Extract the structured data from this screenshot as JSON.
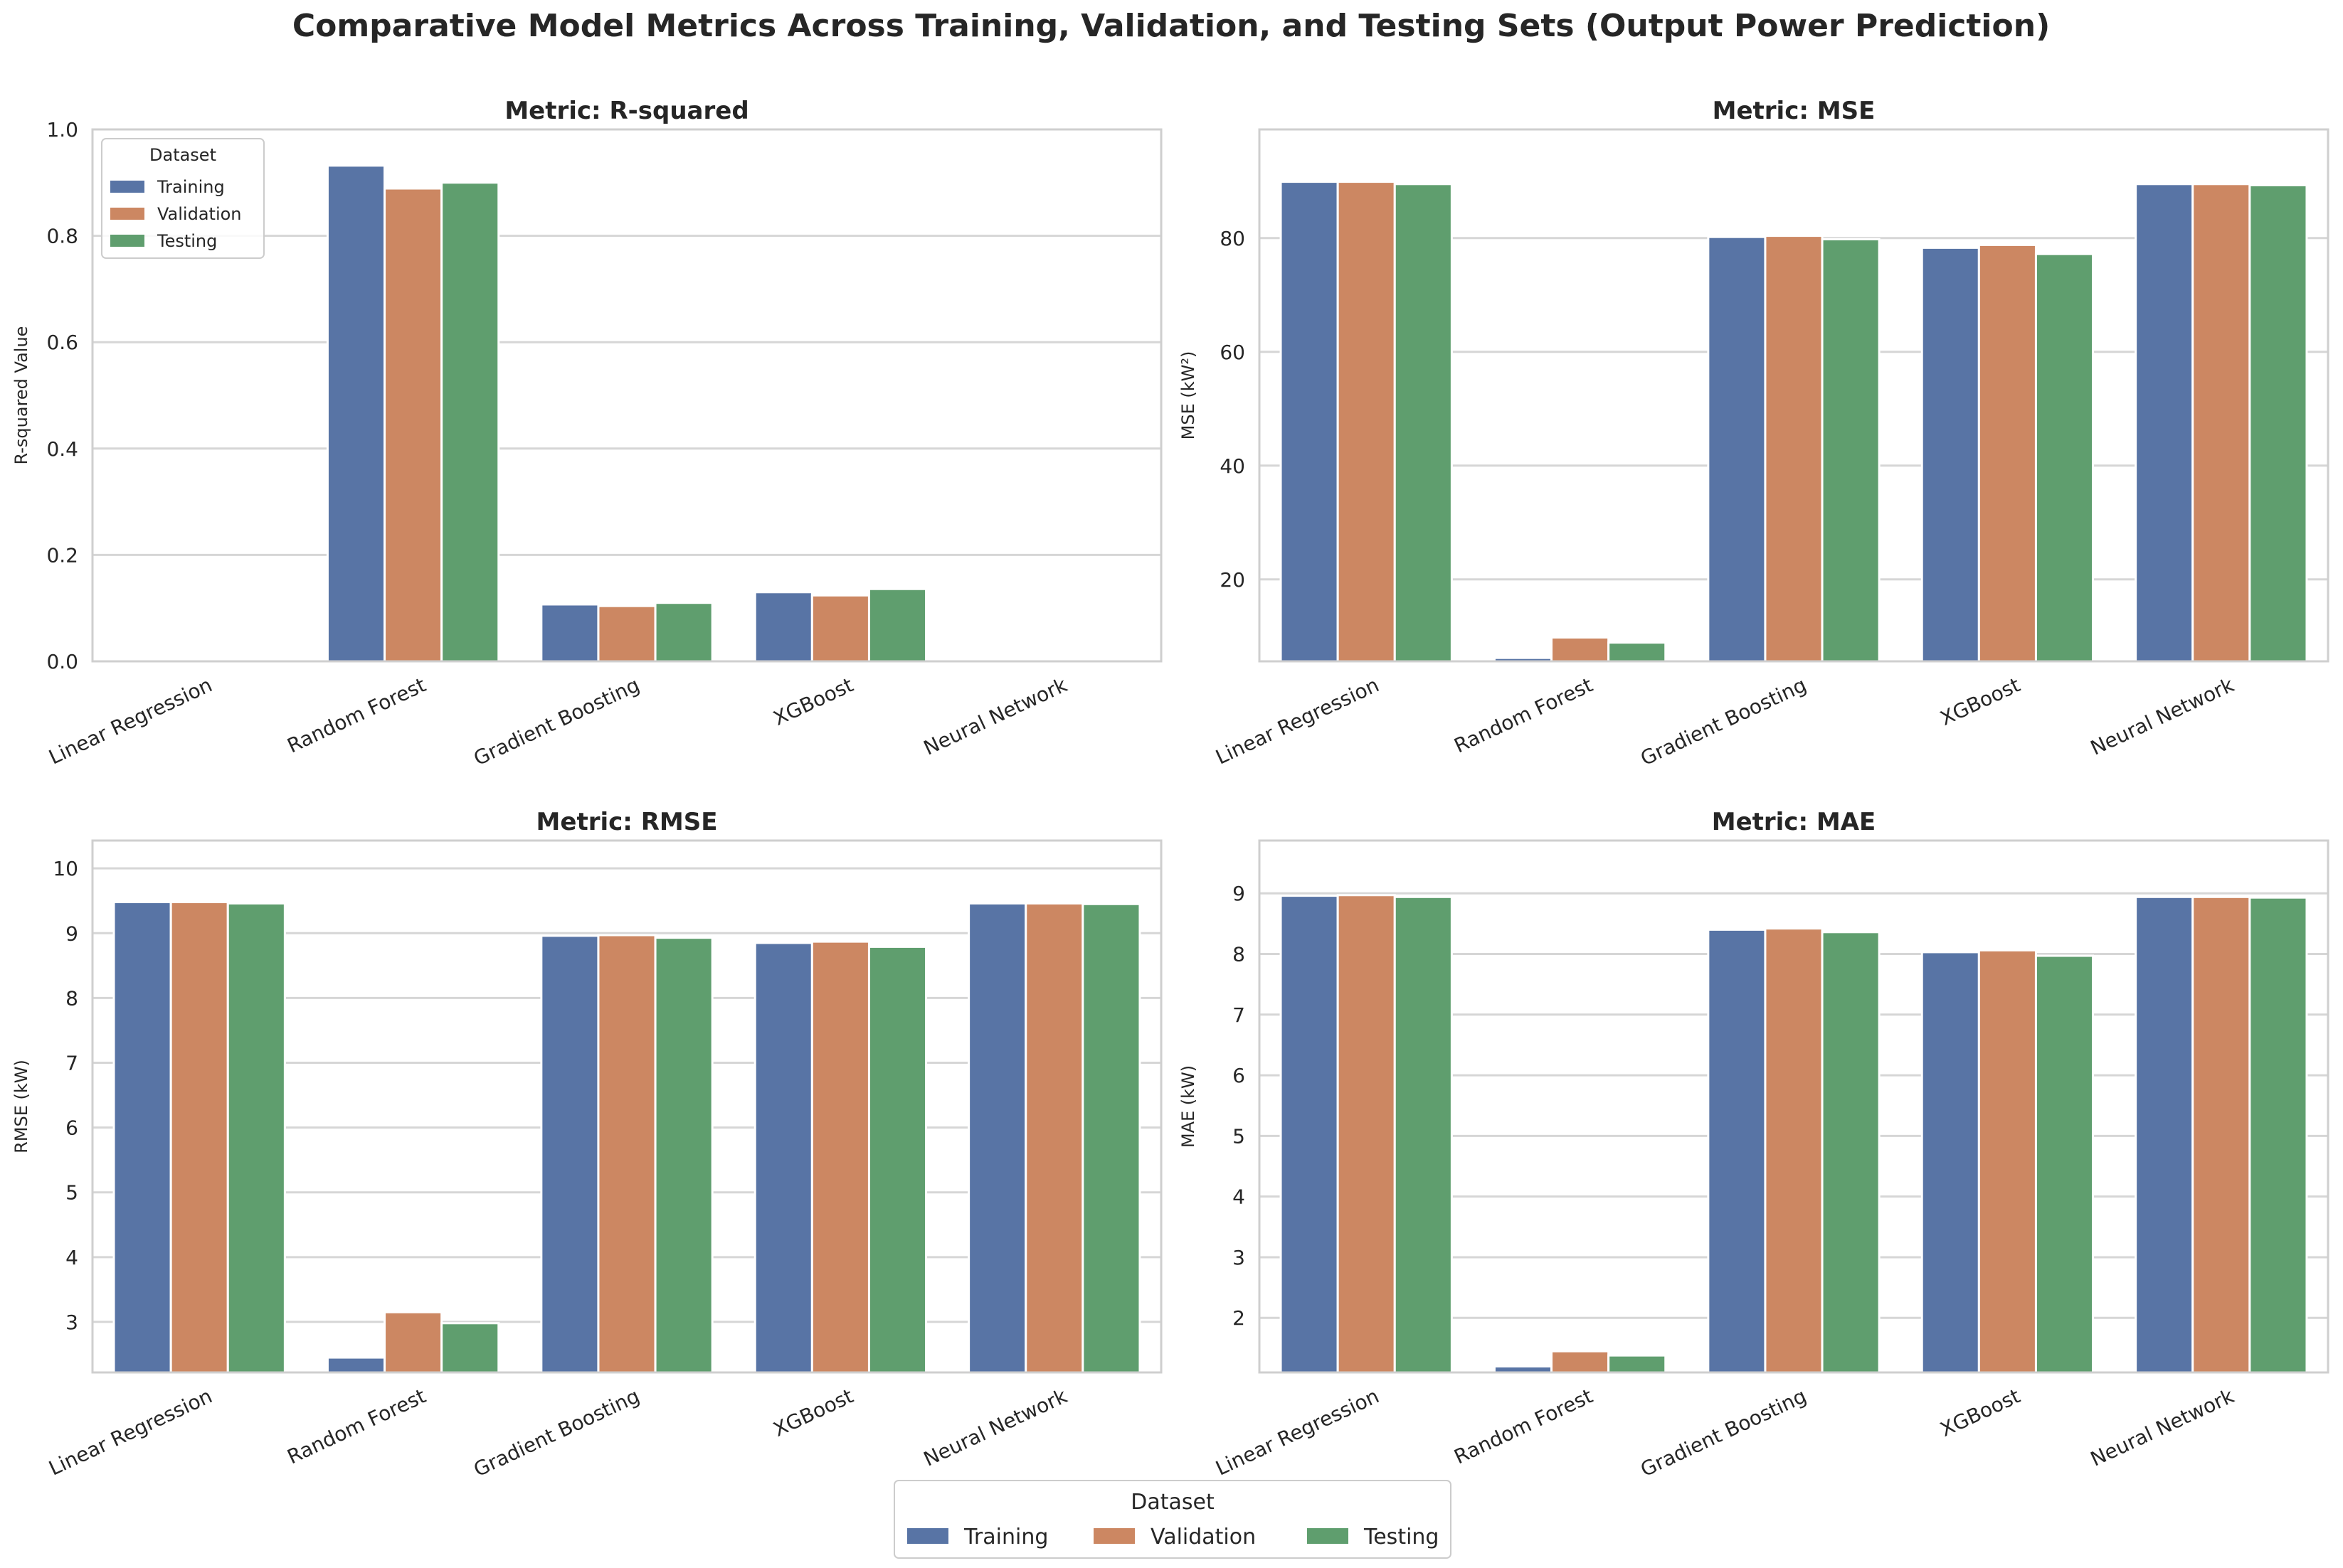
{
  "figure": {
    "title": "Comparative Model Metrics Across Training, Validation, and Testing Sets (Output Power Prediction)"
  },
  "colors": {
    "Training": "#5874a5",
    "Validation": "#cc8762",
    "Testing": "#5f9e6e",
    "grid": "#d6d6d6",
    "spine": "#cfcfcf"
  },
  "legend": {
    "title": "Dataset",
    "entries": [
      "Training",
      "Validation",
      "Testing"
    ]
  },
  "chart_data": [
    {
      "type": "bar",
      "title": "Metric: R-squared",
      "ylabel": "R-squared Value",
      "categories": [
        "Linear Regression",
        "Random Forest",
        "Gradient Boosting",
        "XGBoost",
        "Neural Network"
      ],
      "ylim": [
        0,
        1.0
      ],
      "yticks": [
        0.0,
        0.2,
        0.4,
        0.6,
        0.8,
        1.0
      ],
      "ytick_labels": [
        "0.0",
        "0.2",
        "0.4",
        "0.6",
        "0.8",
        "1.0"
      ],
      "legend_inside": true,
      "series": [
        {
          "name": "Training",
          "values": [
            0.0,
            0.932,
            0.107,
            0.13,
            0.0
          ]
        },
        {
          "name": "Validation",
          "values": [
            0.0,
            0.889,
            0.104,
            0.124,
            0.0
          ]
        },
        {
          "name": "Testing",
          "values": [
            0.0,
            0.9,
            0.11,
            0.136,
            0.0
          ]
        }
      ]
    },
    {
      "type": "bar",
      "title": "Metric: MSE",
      "ylabel": "MSE (kW²)",
      "categories": [
        "Linear Regression",
        "Random Forest",
        "Gradient Boosting",
        "XGBoost",
        "Neural Network"
      ],
      "ylim": [
        5.6,
        99.1
      ],
      "yticks": [
        20,
        40,
        60,
        80
      ],
      "ytick_labels": [
        "20",
        "40",
        "60",
        "80"
      ],
      "legend_inside": false,
      "series": [
        {
          "name": "Training",
          "values": [
            89.9,
            6.2,
            80.2,
            78.3,
            89.5
          ]
        },
        {
          "name": "Validation",
          "values": [
            89.9,
            9.8,
            80.4,
            78.8,
            89.5
          ]
        },
        {
          "name": "Testing",
          "values": [
            89.5,
            8.9,
            79.8,
            77.2,
            89.3
          ]
        }
      ]
    },
    {
      "type": "bar",
      "title": "Metric: RMSE",
      "ylabel": "RMSE (kW)",
      "categories": [
        "Linear Regression",
        "Random Forest",
        "Gradient Boosting",
        "XGBoost",
        "Neural Network"
      ],
      "ylim": [
        2.22,
        10.43
      ],
      "yticks": [
        3,
        4,
        5,
        6,
        7,
        8,
        9,
        10
      ],
      "ytick_labels": [
        "3",
        "4",
        "5",
        "6",
        "7",
        "8",
        "9",
        "10"
      ],
      "legend_inside": false,
      "series": [
        {
          "name": "Training",
          "values": [
            9.48,
            2.45,
            8.96,
            8.85,
            9.46
          ]
        },
        {
          "name": "Validation",
          "values": [
            9.48,
            3.15,
            8.97,
            8.87,
            9.46
          ]
        },
        {
          "name": "Testing",
          "values": [
            9.46,
            2.98,
            8.93,
            8.79,
            9.45
          ]
        }
      ]
    },
    {
      "type": "bar",
      "title": "Metric: MAE",
      "ylabel": "MAE (kW)",
      "categories": [
        "Linear Regression",
        "Random Forest",
        "Gradient Boosting",
        "XGBoost",
        "Neural Network"
      ],
      "ylim": [
        1.1,
        9.87
      ],
      "yticks": [
        2,
        3,
        4,
        5,
        6,
        7,
        8,
        9
      ],
      "ytick_labels": [
        "2",
        "3",
        "4",
        "5",
        "6",
        "7",
        "8",
        "9"
      ],
      "legend_inside": false,
      "series": [
        {
          "name": "Training",
          "values": [
            8.96,
            1.2,
            8.4,
            8.03,
            8.94
          ]
        },
        {
          "name": "Validation",
          "values": [
            8.97,
            1.45,
            8.42,
            8.06,
            8.94
          ]
        },
        {
          "name": "Testing",
          "values": [
            8.94,
            1.38,
            8.36,
            7.97,
            8.93
          ]
        }
      ]
    }
  ]
}
